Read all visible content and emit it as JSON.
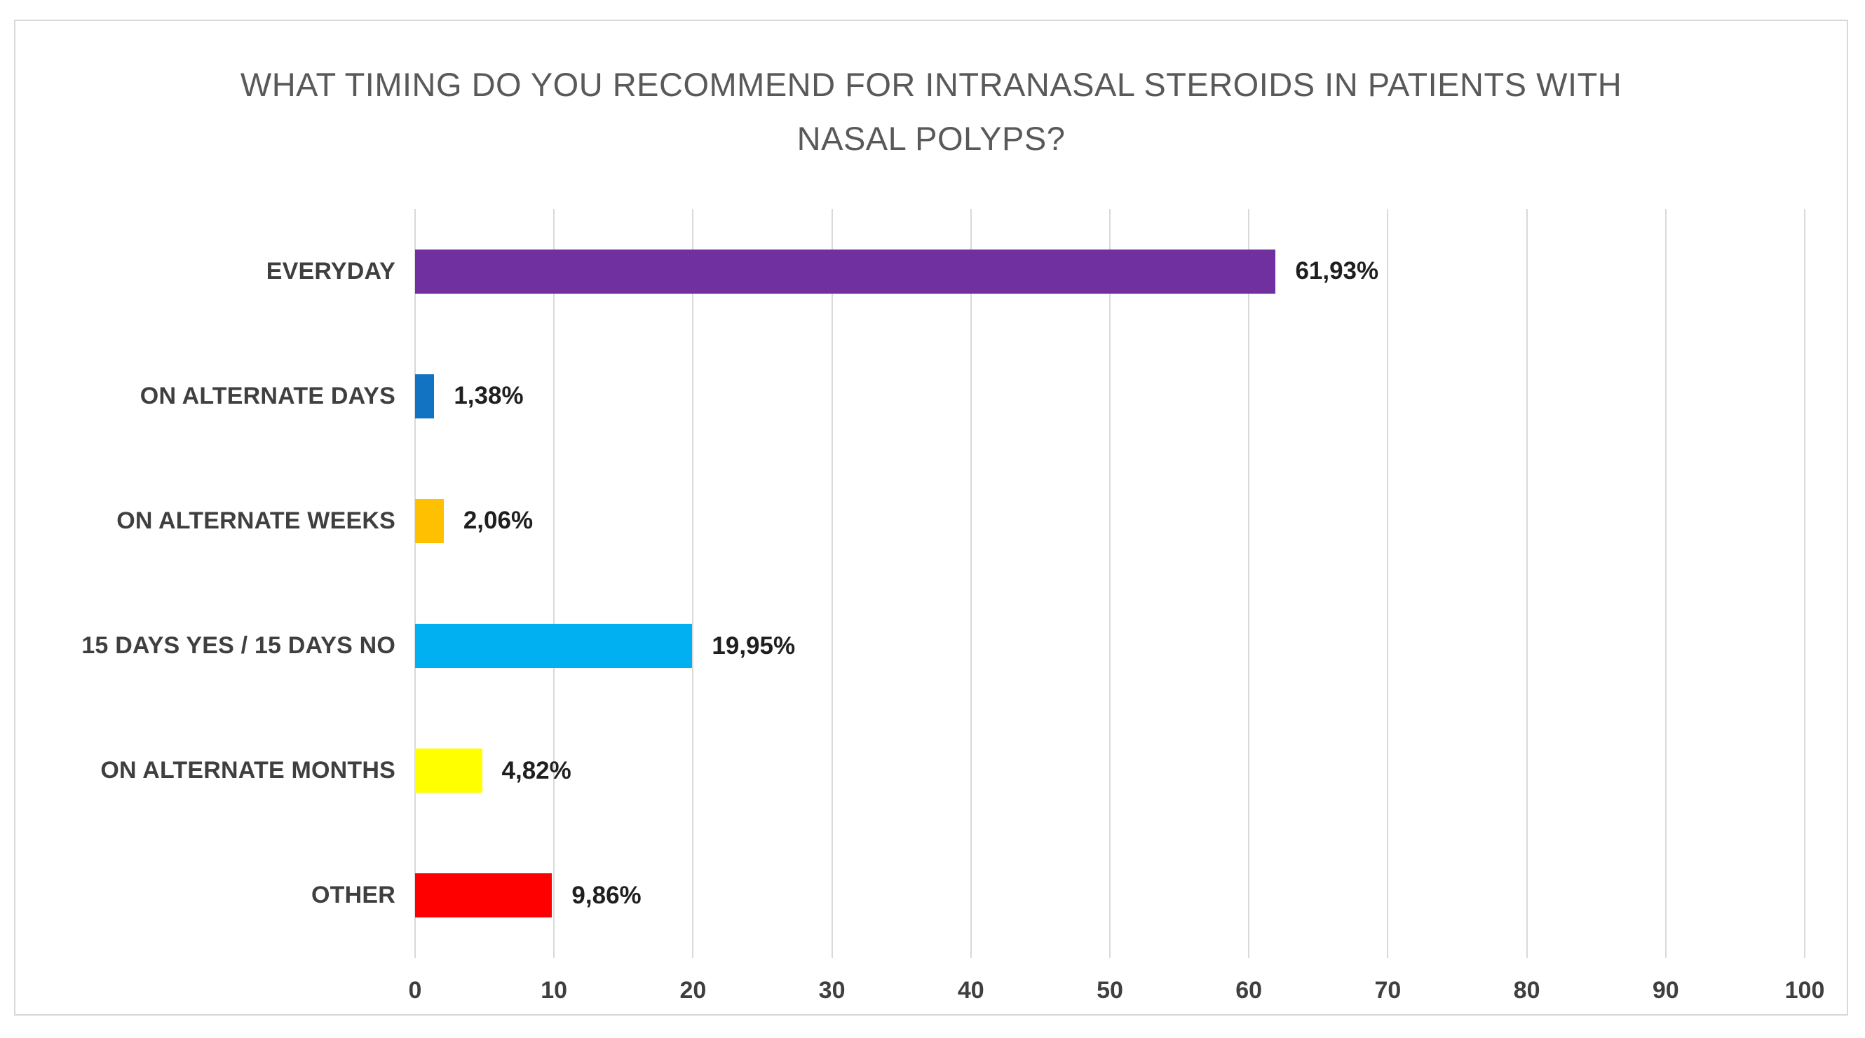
{
  "chart_data": {
    "type": "bar",
    "orientation": "horizontal",
    "title": "WHAT TIMING DO YOU RECOMMEND FOR INTRANASAL STEROIDS IN PATIENTS WITH NASAL POLYPS?",
    "title_lines": [
      "WHAT TIMING DO YOU RECOMMEND FOR INTRANASAL STEROIDS IN PATIENTS WITH",
      "NASAL POLYPS?"
    ],
    "categories": [
      "EVERYDAY",
      "ON ALTERNATE DAYS",
      "ON ALTERNATE WEEKS",
      "15 DAYS YES / 15 DAYS NO",
      "ON ALTERNATE MONTHS",
      "OTHER"
    ],
    "values": [
      61.93,
      1.38,
      2.06,
      19.95,
      4.82,
      9.86
    ],
    "value_labels": [
      "61,93%",
      "1,38%",
      "2,06%",
      "19,95%",
      "4,82%",
      "9,86%"
    ],
    "bar_colors": [
      "#7030a0",
      "#1273c2",
      "#fec000",
      "#00b0f0",
      "#ffff00",
      "#fe0000"
    ],
    "xlabel": "",
    "ylabel": "",
    "xlim": [
      0,
      100
    ],
    "x_ticks": [
      0,
      10,
      20,
      30,
      40,
      50,
      60,
      70,
      80,
      90,
      100
    ],
    "grid": true,
    "legend": "none"
  },
  "styles": {
    "title_color": "#595959",
    "category_label_color": "#3f3f3f",
    "value_label_color": "#1f1f1f",
    "tick_label_color": "#3f3f3f",
    "gridline_color": "#d9d9d9",
    "frame_border_color": "#d8d8d8",
    "background_color": "#ffffff"
  }
}
